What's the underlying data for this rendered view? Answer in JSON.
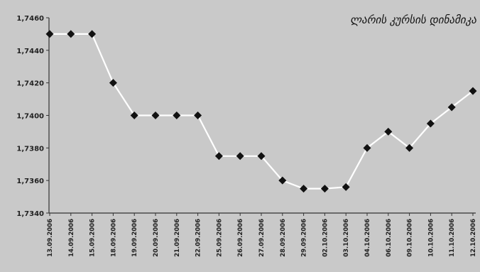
{
  "chart_data": {
    "type": "line",
    "title": "ლარის კურსის დინამიკა",
    "xlabel": "",
    "ylabel": "",
    "x": [
      "13.09.2006",
      "14.09.2006",
      "15.09.2006",
      "18.09.2006",
      "19.09.2006",
      "20.09.2006",
      "21.09.2006",
      "22.09.2006",
      "25.09.2006",
      "26.09.2006",
      "27.09.2006",
      "28.09.2006",
      "29.09.2006",
      "02.10.2006",
      "03.10.2006",
      "04.10.2006",
      "06.10.2006",
      "09.10.2006",
      "10.10.2006",
      "11.10.2006",
      "12.10.2006"
    ],
    "values": [
      1.745,
      1.745,
      1.745,
      1.742,
      1.74,
      1.74,
      1.74,
      1.74,
      1.7375,
      1.7375,
      1.7375,
      1.736,
      1.7355,
      1.7355,
      1.7356,
      1.738,
      1.739,
      1.738,
      1.7395,
      1.7405,
      1.7415
    ],
    "yticks": [
      "1,7460",
      "1,7440",
      "1,7420",
      "1,7400",
      "1,7380",
      "1,7360",
      "1,7340"
    ],
    "ylim": [
      1.734,
      1.746
    ],
    "grid": false,
    "legend": "none",
    "colors": {
      "background": "#c9c9c9",
      "line": "#ffffff",
      "marker": "#111111",
      "axis": "#333333",
      "text": "#222222"
    }
  }
}
